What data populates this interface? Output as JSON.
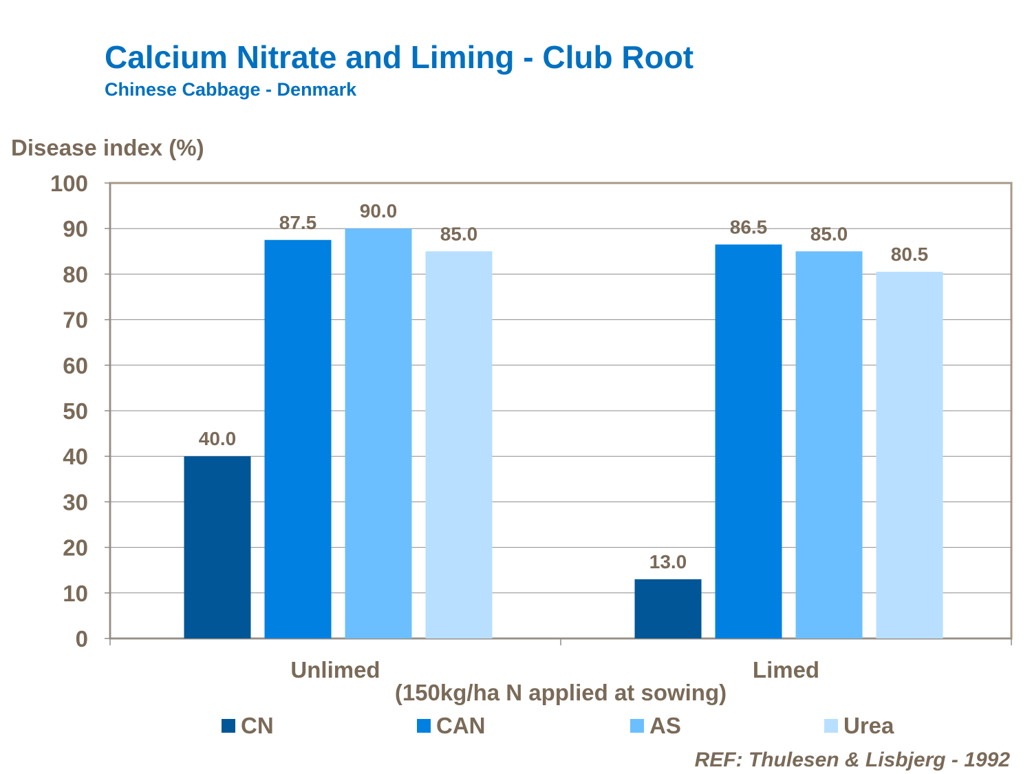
{
  "title": "Calcium Nitrate and Liming - Club Root",
  "subtitle": "Chinese Cabbage - Denmark",
  "reference": "REF: Thulesen & Lisbjerg - 1992",
  "chart_data": {
    "type": "bar",
    "ylabel": "Disease index (%)",
    "xlabel": "(150kg/ha N applied at sowing)",
    "categories": [
      "Unlimed",
      "Limed"
    ],
    "ylim": [
      0,
      100
    ],
    "yticks": [
      "0",
      "10",
      "20",
      "30",
      "40",
      "50",
      "60",
      "70",
      "80",
      "90",
      "100"
    ],
    "grid": true,
    "legend_position": "bottom",
    "series": [
      {
        "name": "CN",
        "values": [
          40.0,
          13.0
        ],
        "labels": [
          "40.0",
          "13.0"
        ],
        "color": "#005696"
      },
      {
        "name": "CAN",
        "values": [
          87.5,
          86.5
        ],
        "labels": [
          "87.5",
          "86.5"
        ],
        "color": "#0080e0"
      },
      {
        "name": "AS",
        "values": [
          90.0,
          85.0
        ],
        "labels": [
          "90.0",
          "85.0"
        ],
        "color": "#6bbfff"
      },
      {
        "name": "Urea",
        "values": [
          85.0,
          80.5
        ],
        "labels": [
          "85.0",
          "80.5"
        ],
        "color": "#b8dfff"
      }
    ]
  }
}
